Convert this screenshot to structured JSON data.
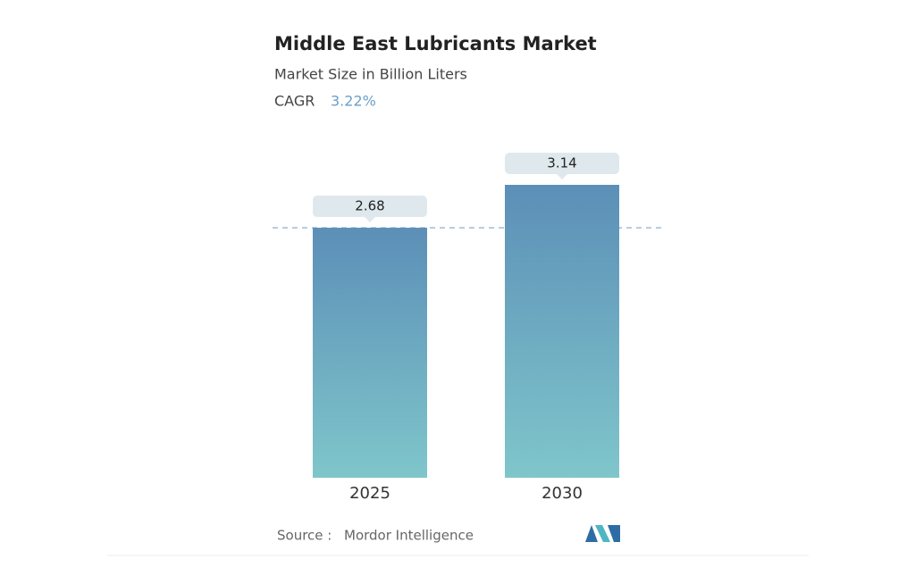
{
  "chart_data": {
    "type": "bar",
    "title": "Middle East Lubricants Market",
    "subtitle": "Market Size in Billion Liters",
    "cagr_label": "CAGR",
    "cagr_value": "3.22%",
    "categories": [
      "2025",
      "2030"
    ],
    "values": [
      2.68,
      3.14
    ],
    "gradient": [
      "#5c8fb7",
      "#7fc6cb"
    ],
    "source_label": "Source :",
    "source": "Mordor Intelligence"
  }
}
